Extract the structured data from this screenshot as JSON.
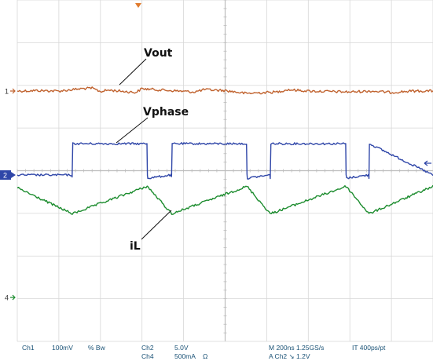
{
  "chart_data": {
    "type": "line",
    "title": "",
    "grid": true,
    "xlim": [
      -1000,
      1000
    ],
    "x_unit": "ns",
    "series": [
      {
        "name": "Vout",
        "channel_marker": "1",
        "color": "#c0622e",
        "scale": "100mV",
        "x": [
          -1000,
          -900,
          -800,
          -690,
          -640,
          -600,
          -560,
          -430,
          -400,
          -300,
          -150,
          -100,
          0,
          50,
          100,
          250,
          300,
          400,
          600,
          700,
          800,
          900,
          1000
        ],
        "y": [
          0.0,
          0.01,
          0.0,
          0.05,
          0.06,
          -0.01,
          0.02,
          -0.03,
          0.05,
          0.02,
          -0.02,
          0.03,
          0.01,
          -0.02,
          -0.05,
          -0.02,
          0.03,
          0.0,
          -0.02,
          0.0,
          -0.03,
          0.0,
          0.0
        ]
      },
      {
        "name": "Vphase",
        "channel_marker": "2",
        "color": "#2f46a8",
        "scale": "5.0V",
        "x": [
          -1000,
          -737,
          -736,
          -733,
          -376,
          -374,
          -372,
          -260,
          -258,
          -255,
          103,
          105,
          107,
          215,
          217,
          220,
          580,
          582,
          584,
          690,
          692,
          694,
          1000
        ],
        "y": [
          0.0,
          0.0,
          -0.3,
          3.5,
          3.5,
          0.0,
          -0.35,
          0.0,
          -0.3,
          3.5,
          3.5,
          0.0,
          -0.35,
          0.0,
          -0.3,
          3.5,
          3.5,
          0.0,
          -0.35,
          0.0,
          -0.3,
          3.5,
          0.0
        ]
      },
      {
        "name": "iL",
        "channel_marker": "",
        "color": "#1c8c2e",
        "scale": "500mA",
        "x": [
          -1000,
          -735,
          -375,
          -257,
          105,
          217,
          582,
          692,
          1000
        ],
        "y": [
          0.9,
          -0.7,
          1.0,
          -0.7,
          1.0,
          -0.7,
          1.0,
          -0.7,
          1.0
        ]
      }
    ],
    "extra_markers": [
      {
        "label": "4",
        "color": "#1c8c2e"
      }
    ],
    "labels": {
      "vout": "Vout",
      "vphase": "Vphase",
      "il": "iL"
    },
    "status_bar": {
      "ch1": "Ch1",
      "ch1_scale": "100mV",
      "ch1_flags": "% Bw",
      "ch2": "Ch2",
      "ch2_scale": "5.0V",
      "ch4": "Ch4",
      "ch4_scale": "500mA",
      "ch4_unit": "Ω",
      "timebase": "M 200ns 1.25GS/s",
      "record": "IT 400ps/pt",
      "trigger": "A Ch2 ↘ 1.2V"
    }
  }
}
